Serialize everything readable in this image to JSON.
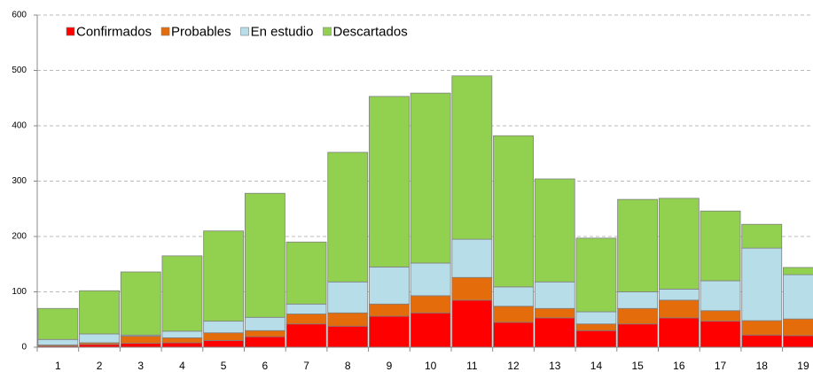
{
  "chart_data": {
    "type": "stacked_bar",
    "categories": [
      "1",
      "2",
      "3",
      "4",
      "5",
      "6",
      "7",
      "8",
      "9",
      "10",
      "11",
      "12",
      "13",
      "14",
      "15",
      "16",
      "17",
      "18",
      "19"
    ],
    "series": [
      {
        "name": "Confirmados",
        "color": "#ff0000",
        "values": [
          2,
          5,
          7,
          8,
          12,
          19,
          42,
          38,
          56,
          62,
          85,
          45,
          53,
          30,
          42,
          53,
          47,
          22,
          21
        ]
      },
      {
        "name": "Probables",
        "color": "#e46c0a",
        "values": [
          2,
          3,
          13,
          9,
          14,
          11,
          18,
          24,
          22,
          31,
          41,
          29,
          17,
          12,
          28,
          32,
          19,
          26,
          30
        ]
      },
      {
        "name": "En estudio",
        "color": "#b7dee8",
        "values": [
          10,
          16,
          2,
          12,
          21,
          24,
          18,
          56,
          67,
          59,
          69,
          35,
          48,
          22,
          30,
          20,
          54,
          131,
          80
        ]
      },
      {
        "name": "Descartados",
        "color": "#92d050",
        "values": [
          56,
          78,
          114,
          136,
          163,
          224,
          112,
          234,
          308,
          307,
          295,
          273,
          186,
          133,
          167,
          164,
          126,
          43,
          13
        ]
      }
    ],
    "ylim": [
      0,
      600
    ],
    "yticks": [
      0,
      100,
      200,
      300,
      400,
      500,
      600
    ],
    "grid": true,
    "legend": "top-left"
  }
}
